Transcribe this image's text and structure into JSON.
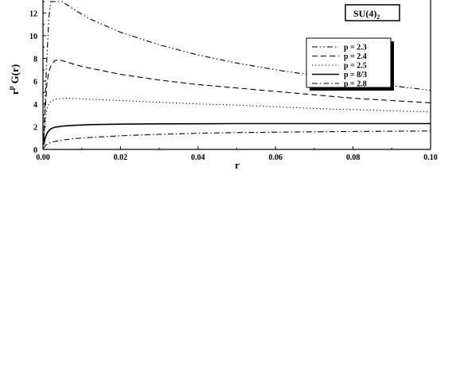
{
  "chart_data": {
    "type": "line",
    "xlabel": "r",
    "ylabel_main": "r",
    "ylabel_sup": "p",
    "ylabel_tail": "G(r)",
    "title_box_main": "SU(4)",
    "title_box_sub": "2",
    "xlim": [
      0,
      0.1
    ],
    "ylim": [
      0,
      13
    ],
    "xticks": [
      0,
      0.02,
      0.04,
      0.06,
      0.08,
      0.1
    ],
    "xtick_labels": [
      "0.00",
      "0.02",
      "0.04",
      "0.06",
      "0.08",
      "0.10"
    ],
    "yticks": [
      0,
      2,
      4,
      6,
      8,
      10,
      12
    ],
    "ytick_labels": [
      "0",
      "2",
      "4",
      "6",
      "8",
      "10",
      "12"
    ],
    "grid": false,
    "legend_position": "top-right",
    "series": [
      {
        "name": "p = 2.3",
        "dash": "dash-dot-dot",
        "x": [
          0.0002,
          0.0005,
          0.001,
          0.0015,
          0.002,
          0.003,
          0.005,
          0.008,
          0.012,
          0.02,
          0.03,
          0.04,
          0.05,
          0.06,
          0.07,
          0.08,
          0.09,
          0.1
        ],
        "y": [
          1.0,
          4.0,
          8.0,
          11.5,
          13.0,
          13.0,
          13.0,
          12.3,
          11.5,
          10.3,
          9.2,
          8.3,
          7.6,
          7.0,
          6.5,
          6.0,
          5.6,
          5.2
        ]
      },
      {
        "name": "p = 2.4",
        "dash": "dash",
        "x": [
          0.0002,
          0.0005,
          0.001,
          0.0015,
          0.002,
          0.003,
          0.004,
          0.005,
          0.007,
          0.01,
          0.02,
          0.03,
          0.04,
          0.05,
          0.06,
          0.07,
          0.08,
          0.09,
          0.1
        ],
        "y": [
          0.8,
          3.0,
          5.8,
          6.8,
          7.3,
          7.8,
          7.9,
          7.8,
          7.6,
          7.3,
          6.6,
          6.1,
          5.7,
          5.4,
          5.1,
          4.8,
          4.5,
          4.3,
          4.1
        ]
      },
      {
        "name": "p = 2.5",
        "dash": "dot",
        "x": [
          0.0002,
          0.0005,
          0.001,
          0.0015,
          0.002,
          0.003,
          0.005,
          0.007,
          0.01,
          0.02,
          0.03,
          0.04,
          0.05,
          0.06,
          0.07,
          0.08,
          0.09,
          0.1
        ],
        "y": [
          0.7,
          2.2,
          3.5,
          4.0,
          4.2,
          4.4,
          4.5,
          4.5,
          4.45,
          4.3,
          4.15,
          4.0,
          3.9,
          3.75,
          3.6,
          3.5,
          3.4,
          3.3
        ]
      },
      {
        "name": "p = 8/3",
        "dash": "solid",
        "x": [
          0.0002,
          0.0005,
          0.001,
          0.0015,
          0.002,
          0.003,
          0.005,
          0.008,
          0.012,
          0.02,
          0.03,
          0.04,
          0.05,
          0.06,
          0.07,
          0.08,
          0.09,
          0.1
        ],
        "y": [
          0.4,
          0.9,
          1.4,
          1.65,
          1.8,
          1.95,
          2.05,
          2.12,
          2.18,
          2.22,
          2.25,
          2.26,
          2.27,
          2.27,
          2.27,
          2.27,
          2.27,
          2.27
        ]
      },
      {
        "name": "p = 2.8",
        "dash": "dash-dot",
        "x": [
          0.0002,
          0.0005,
          0.001,
          0.002,
          0.003,
          0.005,
          0.008,
          0.012,
          0.02,
          0.03,
          0.04,
          0.05,
          0.06,
          0.07,
          0.08,
          0.09,
          0.1
        ],
        "y": [
          0.1,
          0.3,
          0.45,
          0.6,
          0.7,
          0.82,
          0.95,
          1.05,
          1.2,
          1.33,
          1.42,
          1.48,
          1.52,
          1.55,
          1.58,
          1.6,
          1.62
        ]
      }
    ]
  }
}
